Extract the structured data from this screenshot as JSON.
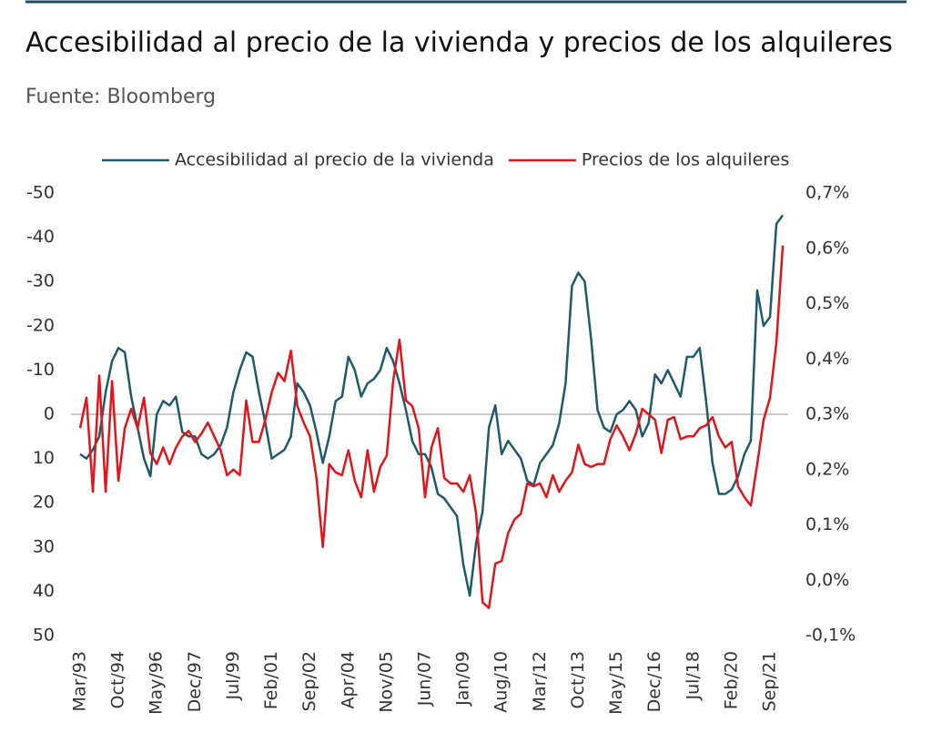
{
  "chart_data": {
    "type": "line",
    "title": "Accesibilidad al precio de la vivienda y precios de los alquileres",
    "subtitle": "Fuente: Bloomberg",
    "categories": [
      "Mar/93",
      null,
      null,
      null,
      null,
      null,
      "Oct/94",
      null,
      null,
      null,
      null,
      null,
      "May/96",
      null,
      null,
      null,
      null,
      null,
      "Dec/97",
      null,
      null,
      null,
      null,
      null,
      "Jul/99",
      null,
      null,
      null,
      null,
      null,
      "Feb/01",
      null,
      null,
      null,
      null,
      null,
      "Sep/02",
      null,
      null,
      null,
      null,
      null,
      "Apr/04",
      null,
      null,
      null,
      null,
      null,
      "Nov/05",
      null,
      null,
      null,
      null,
      null,
      "Jun/07",
      null,
      null,
      null,
      null,
      null,
      "Jan/09",
      null,
      null,
      null,
      null,
      null,
      "Aug/10",
      null,
      null,
      null,
      null,
      null,
      "Mar/12",
      null,
      null,
      null,
      null,
      null,
      "Oct/13",
      null,
      null,
      null,
      null,
      null,
      "May/15",
      null,
      null,
      null,
      null,
      null,
      "Dec/16",
      null,
      null,
      null,
      null,
      null,
      "Jul/18",
      null,
      null,
      null,
      null,
      null,
      "Feb/20",
      null,
      null,
      null,
      null,
      null,
      "Sep/21",
      null,
      null
    ],
    "series": [
      {
        "name": "Accesibilidad al precio de la vivienda",
        "color": "#1d5a6c",
        "axis": "y",
        "values": [
          9,
          10,
          8,
          5,
          -5,
          -12,
          -15,
          -14,
          -4,
          3,
          10,
          14,
          0,
          -3,
          -2,
          -4,
          4,
          5,
          5,
          9,
          10,
          9,
          7,
          3,
          -5,
          -10,
          -14,
          -13,
          -5,
          2,
          10,
          9,
          8,
          5,
          -7,
          -5,
          -2,
          4,
          11,
          5,
          -3,
          -4,
          -13,
          -10,
          -4,
          -7,
          -8,
          -10,
          -15,
          -12,
          -7,
          -1,
          6,
          9,
          9,
          12,
          18,
          19,
          21,
          23,
          34,
          41,
          29,
          22,
          3,
          -2,
          9,
          6,
          8,
          10,
          15,
          16,
          11,
          9,
          7,
          2,
          -7,
          -29,
          -32,
          -30,
          -17,
          -1,
          3,
          4,
          0,
          -1,
          -3,
          -1,
          5,
          2,
          -9,
          -7,
          -10,
          -7,
          -4,
          -13,
          -13,
          -15,
          -3,
          11,
          18,
          18,
          17,
          14,
          9,
          6,
          -28,
          -20,
          -22,
          -43,
          -45
        ]
      },
      {
        "name": "Precios de los alquileres",
        "color": "#e3141a",
        "axis": "y2",
        "values": [
          0.275,
          0.33,
          0.16,
          0.37,
          0.16,
          0.36,
          0.18,
          0.275,
          0.31,
          0.275,
          0.33,
          0.23,
          0.21,
          0.24,
          0.21,
          0.24,
          0.26,
          0.27,
          0.25,
          0.265,
          0.285,
          0.26,
          0.235,
          0.19,
          0.2,
          0.19,
          0.325,
          0.25,
          0.25,
          0.29,
          0.34,
          0.375,
          0.36,
          0.415,
          0.315,
          0.285,
          0.26,
          0.185,
          0.06,
          0.21,
          0.195,
          0.19,
          0.235,
          0.18,
          0.15,
          0.235,
          0.16,
          0.205,
          0.225,
          0.36,
          0.435,
          0.325,
          0.315,
          0.275,
          0.15,
          0.24,
          0.275,
          0.185,
          0.175,
          0.175,
          0.16,
          0.19,
          0.12,
          -0.04,
          -0.05,
          0.03,
          0.035,
          0.085,
          0.11,
          0.12,
          0.175,
          0.17,
          0.175,
          0.15,
          0.19,
          0.16,
          0.18,
          0.195,
          0.245,
          0.21,
          0.205,
          0.21,
          0.21,
          0.255,
          0.28,
          0.26,
          0.235,
          0.265,
          0.31,
          0.3,
          0.29,
          0.23,
          0.29,
          0.295,
          0.255,
          0.26,
          0.26,
          0.275,
          0.28,
          0.295,
          0.26,
          0.24,
          0.25,
          0.17,
          0.15,
          0.135,
          0.21,
          0.29,
          0.33,
          0.43,
          0.605
        ]
      }
    ],
    "ylim": [
      -50,
      50
    ],
    "y_inverted": true,
    "yticks": [
      -50,
      -40,
      -30,
      -20,
      -10,
      0,
      10,
      20,
      30,
      40,
      50
    ],
    "y2lim": [
      -0.1,
      0.7
    ],
    "y2ticks": [
      {
        "value": 0.7,
        "label": "0,7%"
      },
      {
        "value": 0.6,
        "label": "0,6%"
      },
      {
        "value": 0.5,
        "label": "0,5%"
      },
      {
        "value": 0.4,
        "label": "0,4%"
      },
      {
        "value": 0.3,
        "label": "0,3%"
      },
      {
        "value": 0.2,
        "label": "0,2%"
      },
      {
        "value": 0.1,
        "label": "0,1%"
      },
      {
        "value": 0.0,
        "label": "0,0%"
      },
      {
        "value": -0.1,
        "label": "-0,1%"
      }
    ],
    "zero_line": true,
    "grid": false,
    "legend": "top"
  }
}
